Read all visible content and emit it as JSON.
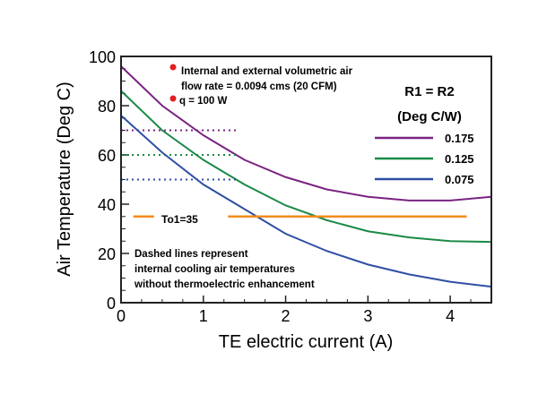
{
  "chart_data": {
    "type": "line",
    "xlabel": "TE electric current (A)",
    "ylabel": "Air Temperature (Deg C)",
    "xlim": [
      0,
      4.5
    ],
    "ylim": [
      0,
      100
    ],
    "xticks": [
      0,
      1,
      2,
      3,
      4
    ],
    "yticks": [
      0,
      20,
      40,
      60,
      80,
      100
    ],
    "x": [
      0,
      0.5,
      1,
      1.5,
      2,
      2.5,
      3,
      3.5,
      4,
      4.5
    ],
    "series": [
      {
        "name": "0.175",
        "color": "#7b2382",
        "values": [
          96,
          80,
          68,
          58,
          51,
          46,
          43,
          41.5,
          41.5,
          43
        ]
      },
      {
        "name": "0.125",
        "color": "#1a8a45",
        "values": [
          86,
          70,
          58,
          48,
          39.5,
          33.5,
          29,
          26.5,
          25,
          24.7
        ]
      },
      {
        "name": "0.075",
        "color": "#2e4fa3",
        "values": [
          76,
          61,
          48,
          38,
          28,
          21,
          15.5,
          11.5,
          8.5,
          6.5
        ]
      }
    ],
    "dashed_baselines": [
      {
        "series": "0.175",
        "y": 70,
        "x": [
          0,
          1.4
        ]
      },
      {
        "series": "0.125",
        "y": 60,
        "x": [
          0,
          1.4
        ]
      },
      {
        "series": "0.075",
        "y": 50,
        "x": [
          0,
          1.4
        ]
      }
    ],
    "reference_line": {
      "label": "To1=35",
      "y": 35,
      "color": "#f28c1e",
      "x": [
        0.15,
        4.2
      ]
    },
    "legend": {
      "title_line1": "R1 = R2",
      "title_line2": "(Deg C/W)",
      "placement": "right"
    },
    "annotations": {
      "bullet1_line1": "Internal and external volumetric air",
      "bullet1_line2": "flow rate = 0.0094 cms (20 CFM)",
      "bullet2": "q = 100 W",
      "note_line1": "Dashed lines represent",
      "note_line2": "internal cooling air temperatures",
      "note_line3": "without thermoelectric enhancement"
    }
  }
}
